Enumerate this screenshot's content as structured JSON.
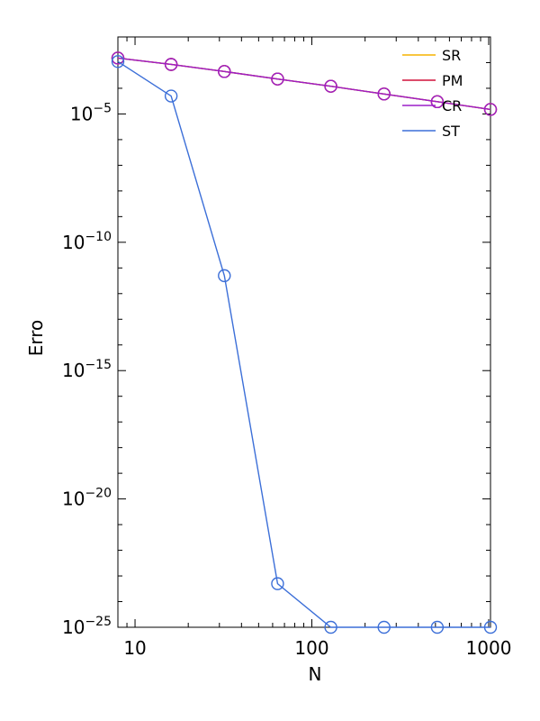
{
  "chart_data": {
    "type": "line",
    "title": "",
    "xlabel": "N",
    "ylabel": "Erro",
    "xscale": "log",
    "yscale": "log",
    "xlim": [
      8,
      1024
    ],
    "ylim": [
      1e-25,
      0.01
    ],
    "x_ticks": [
      {
        "value": 10,
        "label": "10"
      },
      {
        "value": 100,
        "label": "100"
      },
      {
        "value": 1000,
        "label": "1000"
      }
    ],
    "y_ticks": [
      {
        "value": 1e-05,
        "base": "10",
        "exp": "−5"
      },
      {
        "value": 1e-10,
        "base": "10",
        "exp": "−10"
      },
      {
        "value": 1e-15,
        "base": "10",
        "exp": "−15"
      },
      {
        "value": 1e-20,
        "base": "10",
        "exp": "−20"
      },
      {
        "value": 1e-25,
        "base": "10",
        "exp": "−25"
      }
    ],
    "grid": false,
    "legend_position": "top-right",
    "series": [
      {
        "name": "SR",
        "color": "#f5b400",
        "x": [
          8,
          16,
          32,
          64,
          128,
          256,
          512,
          1024
        ],
        "y": [
          0.0015,
          0.00085,
          0.00045,
          0.00023,
          0.00012,
          6e-05,
          3e-05,
          1.5e-05
        ]
      },
      {
        "name": "PM",
        "color": "#d0103a",
        "x": [
          8,
          16,
          32,
          64,
          128,
          256,
          512,
          1024
        ],
        "y": [
          0.0015,
          0.00085,
          0.00045,
          0.00023,
          0.00012,
          6e-05,
          3e-05,
          1.5e-05
        ]
      },
      {
        "name": "CR",
        "color": "#9b1fc8",
        "x": [
          8,
          16,
          32,
          64,
          128,
          256,
          512,
          1024
        ],
        "y": [
          0.0015,
          0.00085,
          0.00045,
          0.00023,
          0.00012,
          6e-05,
          3e-05,
          1.5e-05
        ]
      },
      {
        "name": "ST",
        "color": "#3c6fd8",
        "x": [
          8,
          16,
          32,
          64,
          128,
          256,
          512,
          1024
        ],
        "y": [
          0.0011,
          5e-05,
          5e-12,
          5e-24,
          1e-25,
          1e-25,
          1e-25,
          1e-25
        ]
      }
    ]
  }
}
